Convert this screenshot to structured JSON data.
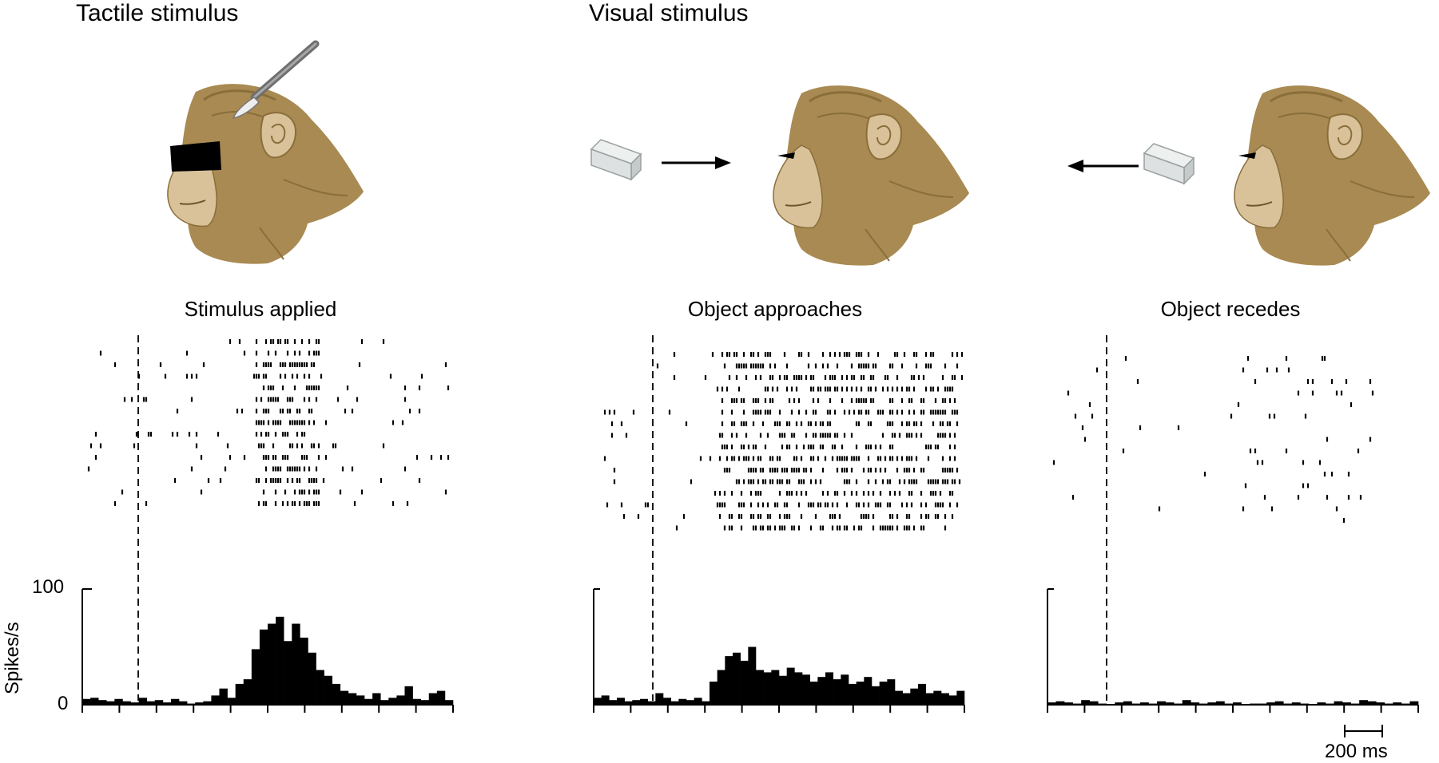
{
  "headings": {
    "tactile": "Tactile stimulus",
    "visual": "Visual stimulus"
  },
  "conditions": [
    {
      "label": "Object approaches"
    },
    {
      "label": "Stimulus applied"
    },
    {
      "label": "Object recedes"
    }
  ],
  "histogram": {
    "y_tick_top": "100",
    "y_tick_bottom": "0",
    "y_label": "Spikes/s",
    "y_max": 100
  },
  "scale_bar": {
    "label": "200 ms"
  },
  "colors": {
    "monkey_fur": "#a88a52",
    "monkey_face": "#d9c29a",
    "ink": "#000000",
    "block": "#d8dcdc"
  }
}
